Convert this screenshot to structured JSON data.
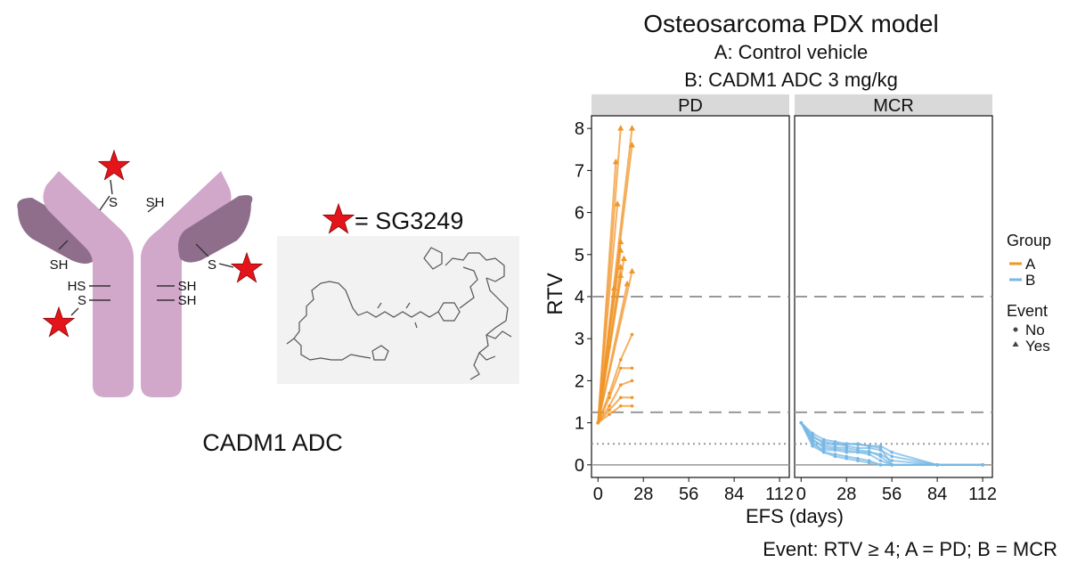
{
  "figure": {
    "antibody_label": "CADM1 ADC",
    "antibody_sites": {
      "s_top": "S",
      "sh_top": "SH",
      "sh_left": "SH",
      "hs_left": "HS",
      "s_left": "S",
      "s_right": "S",
      "sh_right_1": "SH",
      "sh_right_2": "SH"
    },
    "payload_legend": "= SG3249",
    "colors": {
      "antibody": "#d1a7ca",
      "antibody_dark": "#8f6e8c",
      "star": "#e3151b",
      "structure_bg": "#f2f2f2"
    },
    "icons": [
      "payload-star-icon",
      "antibody-icon",
      "sg3249-structure-icon"
    ]
  },
  "chart_data": {
    "type": "line",
    "title": "Osteosarcoma PDX model",
    "subtitle_lines": [
      "A: Control vehicle",
      "B: CADM1 ADC 3 mg/kg"
    ],
    "xlabel": "EFS (days)",
    "ylabel": "RTV",
    "footnote": "Event: RTV ≥ 4; A = PD; B = MCR",
    "ylim": [
      -0.3,
      8.3
    ],
    "yticks": [
      0,
      1,
      2,
      3,
      4,
      5,
      6,
      7,
      8
    ],
    "xlim": [
      -4,
      118
    ],
    "xticks": [
      0,
      28,
      56,
      84,
      112
    ],
    "xtick_labels_left": [
      "0",
      "28",
      "56",
      "84",
      "112"
    ],
    "xtick_labels_right": [
      "0",
      "28",
      "56",
      "84",
      "112"
    ],
    "hlines_dashed": [
      4,
      1.25
    ],
    "hline_dotted": 0.5,
    "hline_solid": 0,
    "grid": false,
    "legend": {
      "position": "right",
      "group_title": "Group",
      "groups": [
        {
          "name": "A",
          "color": "#f0962a"
        },
        {
          "name": "B",
          "color": "#78b8e6"
        }
      ],
      "event_title": "Event",
      "events": [
        {
          "name": "No",
          "marker": "circle"
        },
        {
          "name": "Yes",
          "marker": "triangle"
        }
      ]
    },
    "panels": [
      {
        "name": "PD",
        "group": "A",
        "series": [
          {
            "x": [
              0,
              14
            ],
            "y": [
              1.0,
              8.0
            ],
            "end_marker": "triangle"
          },
          {
            "x": [
              0,
              21
            ],
            "y": [
              1.0,
              8.0
            ],
            "end_marker": "triangle"
          },
          {
            "x": [
              0,
              21
            ],
            "y": [
              1.0,
              7.6
            ],
            "end_marker": "triangle"
          },
          {
            "x": [
              0,
              11
            ],
            "y": [
              1.0,
              7.2
            ],
            "end_marker": "triangle"
          },
          {
            "x": [
              0,
              12
            ],
            "y": [
              1.0,
              6.2
            ],
            "end_marker": "triangle"
          },
          {
            "x": [
              0,
              14
            ],
            "y": [
              1.0,
              5.3
            ],
            "end_marker": "triangle"
          },
          {
            "x": [
              0,
              14
            ],
            "y": [
              1.0,
              5.1
            ],
            "end_marker": "triangle"
          },
          {
            "x": [
              0,
              16
            ],
            "y": [
              1.0,
              4.9
            ],
            "end_marker": "triangle"
          },
          {
            "x": [
              0,
              21
            ],
            "y": [
              1.0,
              4.6
            ],
            "end_marker": "triangle"
          },
          {
            "x": [
              0,
              14
            ],
            "y": [
              1.0,
              4.5
            ],
            "end_marker": "triangle"
          },
          {
            "x": [
              0,
              18
            ],
            "y": [
              1.0,
              4.3
            ],
            "end_marker": "triangle"
          },
          {
            "x": [
              0,
              10
            ],
            "y": [
              1.0,
              4.2
            ],
            "end_marker": "triangle"
          },
          {
            "x": [
              0,
              7,
              14
            ],
            "y": [
              1.0,
              2.8,
              4.7
            ],
            "end_marker": "triangle"
          },
          {
            "x": [
              0,
              7,
              14,
              21
            ],
            "y": [
              1.0,
              1.7,
              2.5,
              3.1
            ],
            "end_marker": "circle"
          },
          {
            "x": [
              0,
              7,
              14,
              21
            ],
            "y": [
              1.0,
              1.6,
              2.3,
              2.3
            ],
            "end_marker": "circle"
          },
          {
            "x": [
              0,
              7,
              14,
              21
            ],
            "y": [
              1.0,
              1.4,
              1.9,
              2.0
            ],
            "end_marker": "circle"
          },
          {
            "x": [
              0,
              7,
              14,
              21
            ],
            "y": [
              1.0,
              1.3,
              1.6,
              1.6
            ],
            "end_marker": "circle"
          },
          {
            "x": [
              0,
              7,
              14,
              21
            ],
            "y": [
              1.0,
              1.2,
              1.4,
              1.4
            ],
            "end_marker": "circle"
          }
        ]
      },
      {
        "name": "MCR",
        "group": "B",
        "series": [
          {
            "x": [
              0,
              7,
              14,
              21,
              28,
              35,
              42,
              49,
              56,
              84,
              112
            ],
            "y": [
              1.0,
              0.6,
              0.45,
              0.42,
              0.4,
              0.35,
              0.32,
              0.2,
              0.0,
              0.0,
              0.0
            ],
            "end_marker": "circle"
          },
          {
            "x": [
              0,
              7,
              14,
              21,
              28,
              35,
              42,
              49,
              56,
              84,
              112
            ],
            "y": [
              1.0,
              0.7,
              0.5,
              0.48,
              0.5,
              0.48,
              0.45,
              0.4,
              0.0,
              0.0,
              0.0
            ],
            "end_marker": "circle"
          },
          {
            "x": [
              0,
              7,
              14,
              21,
              28,
              35,
              42,
              49,
              56,
              84,
              112
            ],
            "y": [
              1.0,
              0.5,
              0.35,
              0.35,
              0.3,
              0.3,
              0.25,
              0.1,
              0.0,
              0.0,
              0.0
            ],
            "end_marker": "circle"
          },
          {
            "x": [
              0,
              7,
              14,
              21,
              28,
              35,
              42,
              49,
              56,
              84,
              112
            ],
            "y": [
              1.0,
              0.65,
              0.55,
              0.5,
              0.45,
              0.4,
              0.4,
              0.35,
              0.2,
              0.0,
              0.0
            ],
            "end_marker": "circle"
          },
          {
            "x": [
              0,
              7,
              14,
              21,
              28,
              35,
              42,
              49,
              56,
              84,
              112
            ],
            "y": [
              1.0,
              0.55,
              0.3,
              0.25,
              0.2,
              0.15,
              0.1,
              0.0,
              0.0,
              0.0,
              0.0
            ],
            "end_marker": "circle"
          },
          {
            "x": [
              0,
              7,
              14,
              21,
              28,
              35,
              42,
              49,
              56,
              84,
              112
            ],
            "y": [
              1.0,
              0.75,
              0.6,
              0.55,
              0.5,
              0.5,
              0.45,
              0.45,
              0.3,
              0.0,
              0.0
            ],
            "end_marker": "circle"
          },
          {
            "x": [
              0,
              7,
              14,
              21,
              28,
              35,
              42,
              49,
              56,
              84,
              112
            ],
            "y": [
              1.0,
              0.45,
              0.3,
              0.2,
              0.15,
              0.1,
              0.05,
              0.0,
              0.0,
              0.0,
              0.0
            ],
            "end_marker": "circle"
          },
          {
            "x": [
              0,
              7,
              14,
              21,
              28,
              35,
              42,
              49,
              56,
              84,
              112
            ],
            "y": [
              1.0,
              0.6,
              0.4,
              0.38,
              0.35,
              0.3,
              0.3,
              0.25,
              0.1,
              0.0,
              0.0
            ],
            "end_marker": "circle"
          }
        ]
      }
    ]
  }
}
